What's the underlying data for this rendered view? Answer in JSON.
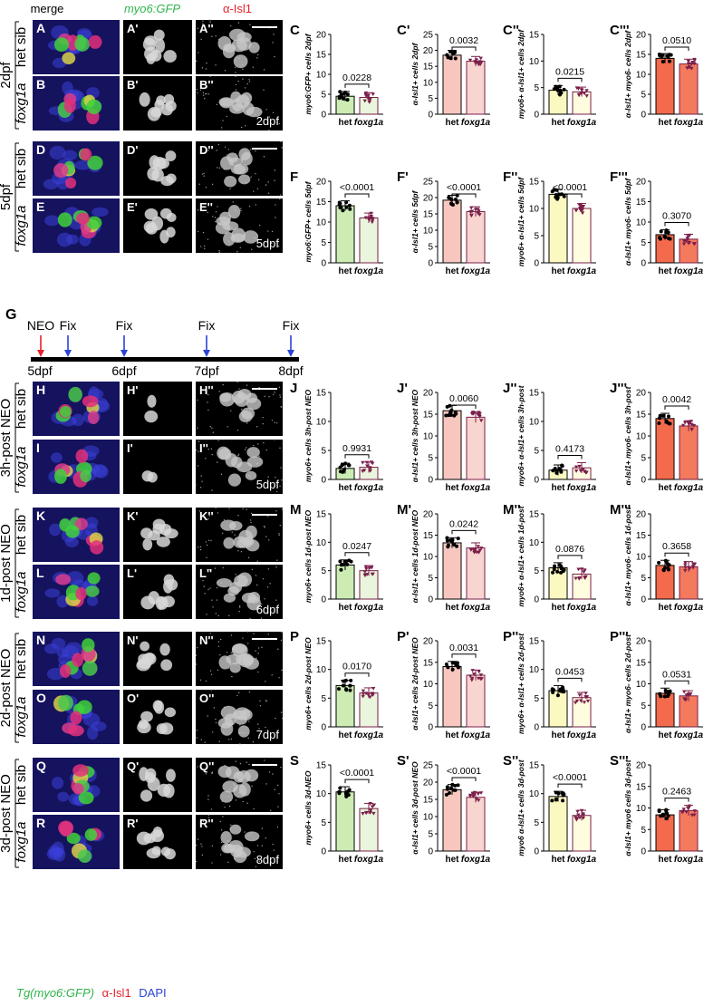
{
  "header": {
    "merge": "merge",
    "myo6": "myo6:GFP",
    "isl1": "α-Isl1"
  },
  "footer_legend": {
    "tg": "Tg(myo6:GFP)",
    "isl1": "α-Isl1",
    "dapi": "DAPI"
  },
  "colors": {
    "het_green": "#ccecb4",
    "het_pink": "#f7c7bf",
    "het_yellow": "#fbf9c0",
    "het_orange": "#f36a4c",
    "kd_green": "#e9f5dc",
    "kd_pink": "#f8d5cf",
    "kd_yellow": "#fffde0",
    "kd_orange": "#f47a5e",
    "kd_marker": "#7a1f4a"
  },
  "micro_rows": [
    {
      "group": "2dpf",
      "cond": "het sib",
      "l1": "A",
      "l2": "A'",
      "l3": "A''",
      "stage": "",
      "scalebar": true
    },
    {
      "group": "2dpf",
      "cond": "foxg1a",
      "l1": "B",
      "l2": "B'",
      "l3": "B''",
      "stage": "2dpf",
      "scalebar": false
    },
    {
      "group": "5dpf",
      "cond": "het sib",
      "l1": "D",
      "l2": "D'",
      "l3": "D''",
      "stage": "",
      "scalebar": true
    },
    {
      "group": "5dpf",
      "cond": "foxg1a",
      "l1": "E",
      "l2": "E'",
      "l3": "E''",
      "stage": "5dpf",
      "scalebar": false
    },
    {
      "group": "3h-post NEO",
      "cond": "het sib",
      "l1": "H",
      "l2": "H'",
      "l3": "H''",
      "stage": "",
      "scalebar": true
    },
    {
      "group": "3h-post NEO",
      "cond": "foxg1a",
      "l1": "I",
      "l2": "I'",
      "l3": "I''",
      "stage": "5dpf",
      "scalebar": false
    },
    {
      "group": "1d-post NEO",
      "cond": "het sib",
      "l1": "K",
      "l2": "K'",
      "l3": "K''",
      "stage": "",
      "scalebar": true
    },
    {
      "group": "1d-post NEO",
      "cond": "foxg1a",
      "l1": "L",
      "l2": "L'",
      "l3": "L''",
      "stage": "6dpf",
      "scalebar": false
    },
    {
      "group": "2d-post NEO",
      "cond": "het sib",
      "l1": "N",
      "l2": "N'",
      "l3": "N''",
      "stage": "",
      "scalebar": true
    },
    {
      "group": "2d-post NEO",
      "cond": "foxg1a",
      "l1": "O",
      "l2": "O'",
      "l3": "O''",
      "stage": "7dpf",
      "scalebar": false
    },
    {
      "group": "3d-post NEO",
      "cond": "het sib",
      "l1": "Q",
      "l2": "Q'",
      "l3": "Q''",
      "stage": "",
      "scalebar": true
    },
    {
      "group": "3d-post NEO",
      "cond": "foxg1a",
      "l1": "R",
      "l2": "R'",
      "l3": "R''",
      "stage": "8dpf",
      "scalebar": false
    }
  ],
  "timeline": {
    "label": "G",
    "neo": "NEO",
    "fix": "Fix",
    "days": [
      "5dpf",
      "6dpf",
      "7dpf",
      "8dpf"
    ]
  },
  "chart_data": [
    {
      "type": "bar",
      "panel": "C",
      "ylabel": "myo6:GFP+ cells 2dpf",
      "categories": [
        "het",
        "foxg1a"
      ],
      "values": [
        4.5,
        4.2
      ],
      "ylim": [
        0,
        20
      ],
      "yticks": [
        0,
        5,
        10,
        15,
        20
      ],
      "pvalue": "0.0228",
      "color": "green"
    },
    {
      "type": "bar",
      "panel": "C'",
      "ylabel": "α-Isl1+ cells 2dpf",
      "categories": [
        "het",
        "foxg1a"
      ],
      "values": [
        18.5,
        16.6
      ],
      "ylim": [
        0,
        25
      ],
      "yticks": [
        0,
        5,
        10,
        15,
        20,
        25
      ],
      "pvalue": "0.0032",
      "color": "pink"
    },
    {
      "type": "bar",
      "panel": "C''",
      "ylabel": "myo6+ α-Isl1+ cells 2dpf",
      "categories": [
        "het",
        "foxg1a"
      ],
      "values": [
        4.5,
        4.2
      ],
      "ylim": [
        0,
        15
      ],
      "yticks": [
        0,
        5,
        10,
        15
      ],
      "pvalue": "0.0215",
      "color": "yellow"
    },
    {
      "type": "bar",
      "panel": "C'''",
      "ylabel": "α-Isl1+ myo6- cells 2dpf",
      "categories": [
        "het",
        "foxg1a"
      ],
      "values": [
        14.0,
        12.6
      ],
      "ylim": [
        0,
        20
      ],
      "yticks": [
        0,
        5,
        10,
        15,
        20
      ],
      "pvalue": "0.0510",
      "color": "orange"
    },
    {
      "type": "bar",
      "panel": "F",
      "ylabel": "myo6:GFP+ cells 5dpf",
      "categories": [
        "het",
        "foxg1a"
      ],
      "values": [
        14.0,
        11.0
      ],
      "ylim": [
        0,
        20
      ],
      "yticks": [
        0,
        5,
        10,
        15,
        20
      ],
      "pvalue": "<0.0001",
      "color": "green"
    },
    {
      "type": "bar",
      "panel": "F'",
      "ylabel": "α-Isl1+ cells 5dpf",
      "categories": [
        "het",
        "foxg1a"
      ],
      "values": [
        19.2,
        15.7
      ],
      "ylim": [
        0,
        25
      ],
      "yticks": [
        0,
        5,
        10,
        15,
        20,
        25
      ],
      "pvalue": "<0.0001",
      "color": "pink"
    },
    {
      "type": "bar",
      "panel": "F''",
      "ylabel": "myo6+ α-Isl1+ cells 5dpf",
      "categories": [
        "het",
        "foxg1a"
      ],
      "values": [
        12.6,
        10.0
      ],
      "ylim": [
        0,
        15
      ],
      "yticks": [
        0,
        5,
        10,
        15
      ],
      "pvalue": "<0.0001",
      "color": "yellow"
    },
    {
      "type": "bar",
      "panel": "F'''",
      "ylabel": "α-Isl1+ myo6- cells 5dpf",
      "categories": [
        "het",
        "foxg1a"
      ],
      "values": [
        6.9,
        5.8
      ],
      "ylim": [
        0,
        20
      ],
      "yticks": [
        0,
        5,
        10,
        15,
        20
      ],
      "pvalue": "0.3070",
      "color": "orange"
    },
    {
      "type": "bar",
      "panel": "J",
      "ylabel": "myo6+ cells 3h-post NEO",
      "categories": [
        "het",
        "foxg1a"
      ],
      "values": [
        1.9,
        2.1
      ],
      "ylim": [
        0,
        15
      ],
      "yticks": [
        0,
        5,
        10,
        15
      ],
      "pvalue": "0.9931",
      "color": "green"
    },
    {
      "type": "bar",
      "panel": "J'",
      "ylabel": "α-Isl1+ cells 3h-post NEO",
      "categories": [
        "het",
        "foxg1a"
      ],
      "values": [
        15.8,
        14.3
      ],
      "ylim": [
        0,
        20
      ],
      "yticks": [
        0,
        5,
        10,
        15,
        20
      ],
      "pvalue": "0.0060",
      "color": "pink"
    },
    {
      "type": "bar",
      "panel": "J''",
      "ylabel": "myo6+ α-Isl1+ cells 3h-post",
      "categories": [
        "het",
        "foxg1a"
      ],
      "values": [
        1.6,
        2.0
      ],
      "ylim": [
        0,
        15
      ],
      "yticks": [
        0,
        5,
        10,
        15
      ],
      "pvalue": "0.4173",
      "color": "yellow"
    },
    {
      "type": "bar",
      "panel": "J'''",
      "ylabel": "α-Isl1+ myo6- cells 3h-post",
      "categories": [
        "het",
        "foxg1a"
      ],
      "values": [
        14.0,
        12.3
      ],
      "ylim": [
        0,
        20
      ],
      "yticks": [
        0,
        5,
        10,
        15,
        20
      ],
      "pvalue": "0.0042",
      "color": "orange"
    },
    {
      "type": "bar",
      "panel": "M",
      "ylabel": "myo6+ cells 1d-post NEO",
      "categories": [
        "het",
        "foxg1a"
      ],
      "values": [
        6.0,
        5.0
      ],
      "ylim": [
        0,
        15
      ],
      "yticks": [
        0,
        5,
        10,
        15
      ],
      "pvalue": "0.0247",
      "color": "green"
    },
    {
      "type": "bar",
      "panel": "M'",
      "ylabel": "α-Isl1+ cells 1d-post NEO",
      "categories": [
        "het",
        "foxg1a"
      ],
      "values": [
        13.2,
        12.0
      ],
      "ylim": [
        0,
        20
      ],
      "yticks": [
        0,
        5,
        10,
        15,
        20
      ],
      "pvalue": "0.0242",
      "color": "pink"
    },
    {
      "type": "bar",
      "panel": "M''",
      "ylabel": "myo6+ α-Isl1+ cells 1d-post",
      "categories": [
        "het",
        "foxg1a"
      ],
      "values": [
        5.5,
        4.4
      ],
      "ylim": [
        0,
        15
      ],
      "yticks": [
        0,
        5,
        10,
        15
      ],
      "pvalue": "0.0876",
      "color": "yellow"
    },
    {
      "type": "bar",
      "panel": "M'''",
      "ylabel": "α-Isl1+ myo6- cells 1d-post",
      "categories": [
        "het",
        "foxg1a"
      ],
      "values": [
        7.9,
        7.6
      ],
      "ylim": [
        0,
        20
      ],
      "yticks": [
        0,
        5,
        10,
        15,
        20
      ],
      "pvalue": "0.3658",
      "color": "orange"
    },
    {
      "type": "bar",
      "panel": "P",
      "ylabel": "myo6+ cells 2d-post NEO",
      "categories": [
        "het",
        "foxg1a"
      ],
      "values": [
        7.2,
        5.9
      ],
      "ylim": [
        0,
        15
      ],
      "yticks": [
        0,
        5,
        10,
        15
      ],
      "pvalue": "0.0170",
      "color": "green"
    },
    {
      "type": "bar",
      "panel": "P'",
      "ylabel": "α-Isl1+ cells 2d-post NEO",
      "categories": [
        "het",
        "foxg1a"
      ],
      "values": [
        14.0,
        12.0
      ],
      "ylim": [
        0,
        20
      ],
      "yticks": [
        0,
        5,
        10,
        15,
        20
      ],
      "pvalue": "0.0031",
      "color": "pink"
    },
    {
      "type": "bar",
      "panel": "P''",
      "ylabel": "myo6+ α-Isl1+ cells 2d-post",
      "categories": [
        "het",
        "foxg1a"
      ],
      "values": [
        6.3,
        5.1
      ],
      "ylim": [
        0,
        15
      ],
      "yticks": [
        0,
        5,
        10,
        15
      ],
      "pvalue": "0.0453",
      "color": "yellow"
    },
    {
      "type": "bar",
      "panel": "P'''",
      "ylabel": "α-Isl1+ myo6- cells 2d-post",
      "categories": [
        "het",
        "foxg1a"
      ],
      "values": [
        7.8,
        7.2
      ],
      "ylim": [
        0,
        20
      ],
      "yticks": [
        0,
        5,
        10,
        15,
        20
      ],
      "pvalue": "0.0531",
      "color": "orange"
    },
    {
      "type": "bar",
      "panel": "S",
      "ylabel": "myo6+ cells 3d-NEO",
      "categories": [
        "het",
        "foxg1a"
      ],
      "values": [
        10.3,
        7.4
      ],
      "ylim": [
        0,
        15
      ],
      "yticks": [
        0,
        5,
        10,
        15
      ],
      "pvalue": "<0.0001",
      "color": "green"
    },
    {
      "type": "bar",
      "panel": "S'",
      "ylabel": "α-Isl1+ cells 3d-post NEO",
      "categories": [
        "het",
        "foxg1a"
      ],
      "values": [
        17.8,
        15.6
      ],
      "ylim": [
        0,
        25
      ],
      "yticks": [
        0,
        5,
        10,
        15,
        20,
        25
      ],
      "pvalue": "<0.0001",
      "color": "pink"
    },
    {
      "type": "bar",
      "panel": "S''",
      "ylabel": "myo6 α-Isl1+ cells 3d-post",
      "categories": [
        "het",
        "foxg1a"
      ],
      "values": [
        9.5,
        6.2
      ],
      "ylim": [
        0,
        15
      ],
      "yticks": [
        0,
        5,
        10,
        15
      ],
      "pvalue": "<0.0001",
      "color": "yellow"
    },
    {
      "type": "bar",
      "panel": "S'''",
      "ylabel": "α-Isl1+ myo6 cells 3d-post",
      "categories": [
        "het",
        "foxg1a"
      ],
      "values": [
        8.4,
        9.4
      ],
      "ylim": [
        0,
        20
      ],
      "yticks": [
        0,
        5,
        10,
        15,
        20
      ],
      "pvalue": "0.2463",
      "color": "orange"
    }
  ]
}
